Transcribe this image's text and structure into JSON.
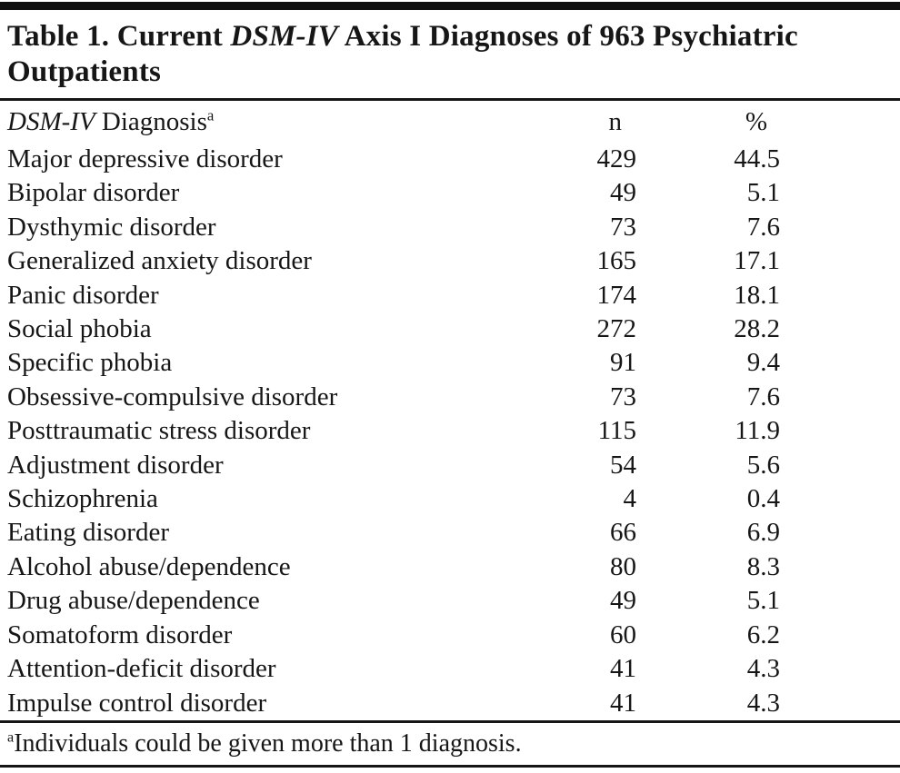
{
  "table": {
    "title": {
      "prefix": "Table 1. Current ",
      "italic": "DSM-IV",
      "suffix": " Axis I Diagnoses of 963 Psychiatric Outpatients"
    },
    "header": {
      "diagnosis_italic": "DSM-IV",
      "diagnosis_rest": " Diagnosis",
      "diagnosis_superscript": "a",
      "n_label": "n",
      "pct_label": "%"
    },
    "rows": [
      {
        "diagnosis": "Major depressive disorder",
        "n": "429",
        "pct": "44.5"
      },
      {
        "diagnosis": "Bipolar disorder",
        "n": "49",
        "pct": "5.1"
      },
      {
        "diagnosis": "Dysthymic disorder",
        "n": "73",
        "pct": "7.6"
      },
      {
        "diagnosis": "Generalized anxiety disorder",
        "n": "165",
        "pct": "17.1"
      },
      {
        "diagnosis": "Panic disorder",
        "n": "174",
        "pct": "18.1"
      },
      {
        "diagnosis": "Social phobia",
        "n": "272",
        "pct": "28.2"
      },
      {
        "diagnosis": "Specific phobia",
        "n": "91",
        "pct": "9.4"
      },
      {
        "diagnosis": "Obsessive-compulsive disorder",
        "n": "73",
        "pct": "7.6"
      },
      {
        "diagnosis": "Posttraumatic stress disorder",
        "n": "115",
        "pct": "11.9"
      },
      {
        "diagnosis": "Adjustment disorder",
        "n": "54",
        "pct": "5.6"
      },
      {
        "diagnosis": "Schizophrenia",
        "n": "4",
        "pct": "0.4"
      },
      {
        "diagnosis": "Eating disorder",
        "n": "66",
        "pct": "6.9"
      },
      {
        "diagnosis": "Alcohol abuse/dependence",
        "n": "80",
        "pct": "8.3"
      },
      {
        "diagnosis": "Drug abuse/dependence",
        "n": "49",
        "pct": "5.1"
      },
      {
        "diagnosis": "Somatoform disorder",
        "n": "60",
        "pct": "6.2"
      },
      {
        "diagnosis": "Attention-deficit disorder",
        "n": "41",
        "pct": "4.3"
      },
      {
        "diagnosis": "Impulse control disorder",
        "n": "41",
        "pct": "4.3"
      }
    ],
    "footnote": {
      "superscript": "a",
      "text": "Individuals could be given more than 1 diagnosis."
    }
  },
  "colors": {
    "text": "#161616",
    "rule": "#161616",
    "top_bar": "#0f0f0f",
    "background": "#ffffff"
  },
  "chart_data": {
    "type": "table",
    "title": "Table 1. Current DSM-IV Axis I Diagnoses of 963 Psychiatric Outpatients",
    "columns": [
      "DSM-IV Diagnosis",
      "n",
      "%"
    ],
    "rows": [
      [
        "Major depressive disorder",
        429,
        44.5
      ],
      [
        "Bipolar disorder",
        49,
        5.1
      ],
      [
        "Dysthymic disorder",
        73,
        7.6
      ],
      [
        "Generalized anxiety disorder",
        165,
        17.1
      ],
      [
        "Panic disorder",
        174,
        18.1
      ],
      [
        "Social phobia",
        272,
        28.2
      ],
      [
        "Specific phobia",
        91,
        9.4
      ],
      [
        "Obsessive-compulsive disorder",
        73,
        7.6
      ],
      [
        "Posttraumatic stress disorder",
        115,
        11.9
      ],
      [
        "Adjustment disorder",
        54,
        5.6
      ],
      [
        "Schizophrenia",
        4,
        0.4
      ],
      [
        "Eating disorder",
        66,
        6.9
      ],
      [
        "Alcohol abuse/dependence",
        80,
        8.3
      ],
      [
        "Drug abuse/dependence",
        49,
        5.1
      ],
      [
        "Somatoform disorder",
        60,
        6.2
      ],
      [
        "Attention-deficit disorder",
        41,
        4.3
      ],
      [
        "Impulse control disorder",
        41,
        4.3
      ]
    ],
    "footnote": "Individuals could be given more than 1 diagnosis."
  }
}
